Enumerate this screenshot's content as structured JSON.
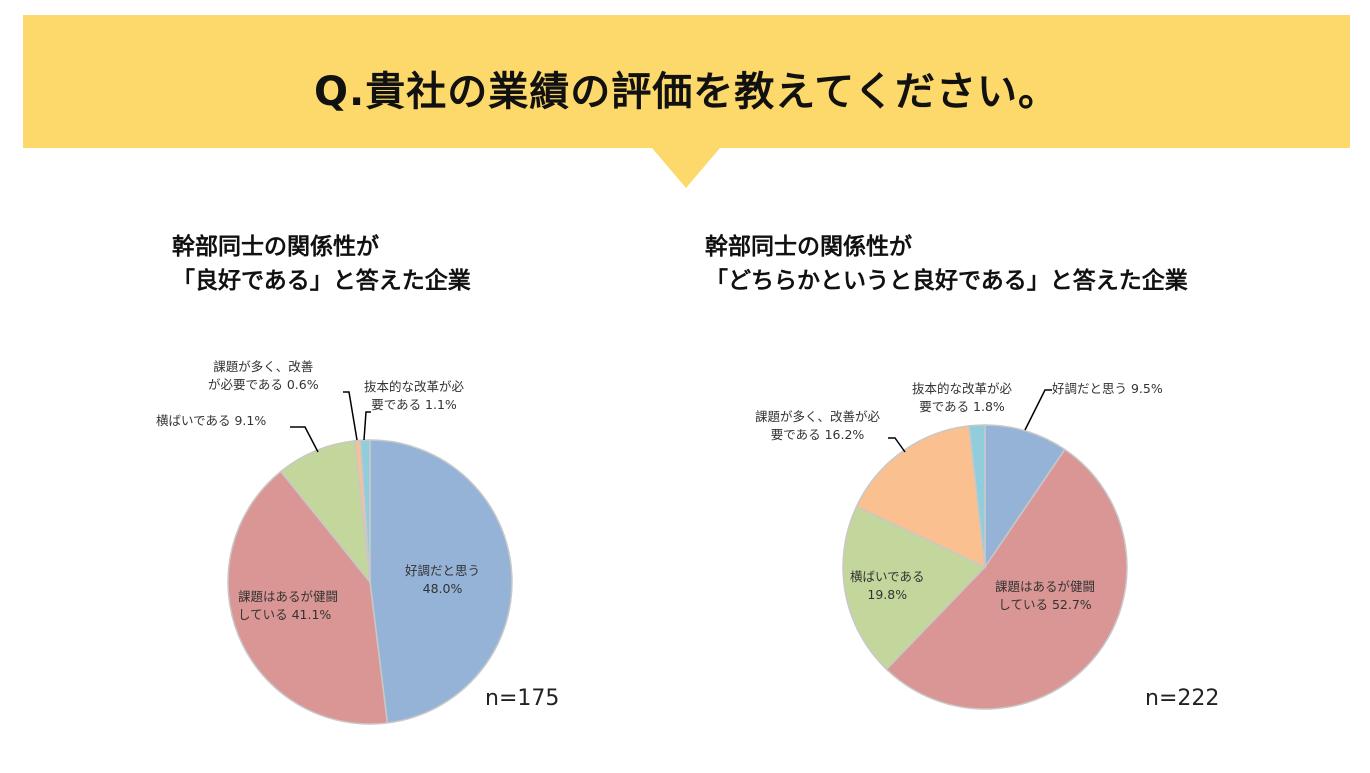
{
  "header": {
    "title": "Q.貴社の業績の評価を教えてください。"
  },
  "colors": {
    "banner": "#fdd96b",
    "s1": "#95b3d7",
    "s2": "#d99694",
    "s3": "#c3d69b",
    "s4": "#fac090",
    "s5": "#92cddc"
  },
  "chart_data": [
    {
      "type": "pie",
      "title_line1": "幹部同士の関係性が",
      "title_line2": "「良好である」と答えた企業",
      "n_label": "n=175",
      "categories": [
        "好調だと思う",
        "課題はあるが健闘している",
        "横ばいである",
        "課題が多く、改善が必要である",
        "抜本的な改革が必要である"
      ],
      "values": [
        48.0,
        41.1,
        9.1,
        0.6,
        1.1
      ],
      "labels": [
        "好調だと思う",
        "48.0%",
        "課題はあるが健闘",
        "している 41.1%",
        "横ばいである 9.1%",
        "課題が多く、改善",
        "が必要である 0.6%",
        "抜本的な改革が必",
        "要である 1.1%"
      ]
    },
    {
      "type": "pie",
      "title_line1": "幹部同士の関係性が",
      "title_line2": "「どちらかというと良好である」と答えた企業",
      "n_label": "n=222",
      "categories": [
        "好調だと思う",
        "課題はあるが健闘している",
        "横ばいである",
        "課題が多く、改善が必要である",
        "抜本的な改革が必要である"
      ],
      "values": [
        9.5,
        52.7,
        19.8,
        16.2,
        1.8
      ],
      "labels": [
        "好調だと思う 9.5%",
        "課題はあるが健闘",
        "している 52.7%",
        "横ばいである",
        "19.8%",
        "課題が多く、改善が必",
        "要である 16.2%",
        "抜本的な改革が必",
        "要である 1.8%"
      ]
    }
  ]
}
